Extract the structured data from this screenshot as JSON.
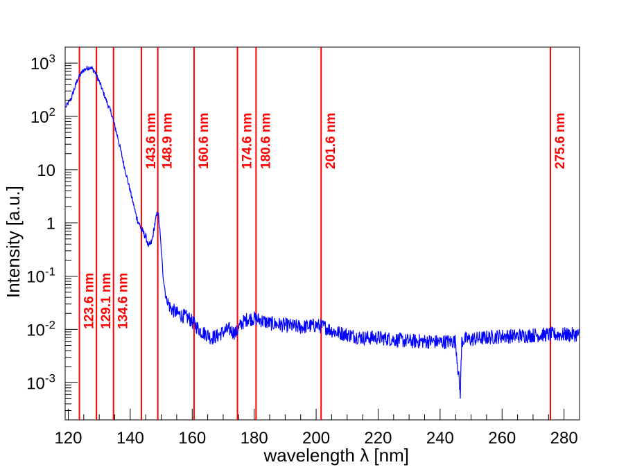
{
  "chart_data": {
    "type": "line",
    "title": "",
    "xlabel": "wavelength λ [nm]",
    "ylabel": "Intensity [a.u.]",
    "xlim": [
      119,
      285
    ],
    "ylim": [
      0.0002,
      2000
    ],
    "yscale": "log",
    "grid": false,
    "series_color": "#0000ff",
    "marker_color": "#ff0000",
    "x_ticks": [
      120,
      140,
      160,
      180,
      200,
      220,
      240,
      260,
      280
    ],
    "y_ticks": [
      {
        "value": 0.001,
        "base": "10",
        "exp": "-3"
      },
      {
        "value": 0.01,
        "base": "10",
        "exp": "-2"
      },
      {
        "value": 0.1,
        "base": "10",
        "exp": "-1"
      },
      {
        "value": 1,
        "base": "1",
        "exp": ""
      },
      {
        "value": 10,
        "base": "10",
        "exp": ""
      },
      {
        "value": 100,
        "base": "10",
        "exp": "2"
      },
      {
        "value": 1000,
        "base": "10",
        "exp": "3"
      }
    ],
    "reference_lines": [
      {
        "x": 123.6,
        "label": "123.6 nm",
        "label_position": "low"
      },
      {
        "x": 129.1,
        "label": "129.1 nm",
        "label_position": "low"
      },
      {
        "x": 134.6,
        "label": "134.6 nm",
        "label_position": "low"
      },
      {
        "x": 143.6,
        "label": "143.6 nm",
        "label_position": "high"
      },
      {
        "x": 148.9,
        "label": "148.9 nm",
        "label_position": "high"
      },
      {
        "x": 160.6,
        "label": "160.6 nm",
        "label_position": "high"
      },
      {
        "x": 174.6,
        "label": "174.6 nm",
        "label_position": "high"
      },
      {
        "x": 180.6,
        "label": "180.6 nm",
        "label_position": "high"
      },
      {
        "x": 201.6,
        "label": "201.6 nm",
        "label_position": "high"
      },
      {
        "x": 275.6,
        "label": "275.6 nm",
        "label_position": "high"
      }
    ],
    "series": [
      {
        "x": [
          119.2,
          121,
          123,
          125,
          127,
          128.5,
          130,
          132,
          134,
          136,
          138,
          140,
          142,
          143.6,
          145,
          146,
          147,
          148,
          148.9,
          149.5,
          150.5,
          151.5,
          153,
          155,
          157,
          159,
          161,
          163,
          165,
          166,
          168,
          170,
          172,
          174,
          176,
          178,
          180,
          182,
          185,
          190,
          195,
          200,
          203,
          206,
          210,
          215,
          220,
          225,
          230,
          235,
          240,
          245,
          246.5,
          247,
          248,
          250,
          255,
          260,
          265,
          270,
          275,
          280,
          285
        ],
        "y": [
          150,
          220,
          500,
          750,
          850,
          700,
          450,
          220,
          110,
          40,
          12,
          4,
          1.3,
          0.75,
          0.55,
          0.35,
          0.45,
          1.0,
          1.7,
          0.8,
          0.12,
          0.04,
          0.025,
          0.02,
          0.018,
          0.016,
          0.012,
          0.009,
          0.008,
          0.007,
          0.0075,
          0.009,
          0.01,
          0.0085,
          0.013,
          0.016,
          0.016,
          0.015,
          0.013,
          0.012,
          0.011,
          0.012,
          0.011,
          0.009,
          0.008,
          0.007,
          0.007,
          0.0065,
          0.006,
          0.006,
          0.0058,
          0.006,
          0.0006,
          0.006,
          0.0065,
          0.0065,
          0.007,
          0.0075,
          0.0075,
          0.0078,
          0.008,
          0.008,
          0.008
        ]
      }
    ]
  }
}
